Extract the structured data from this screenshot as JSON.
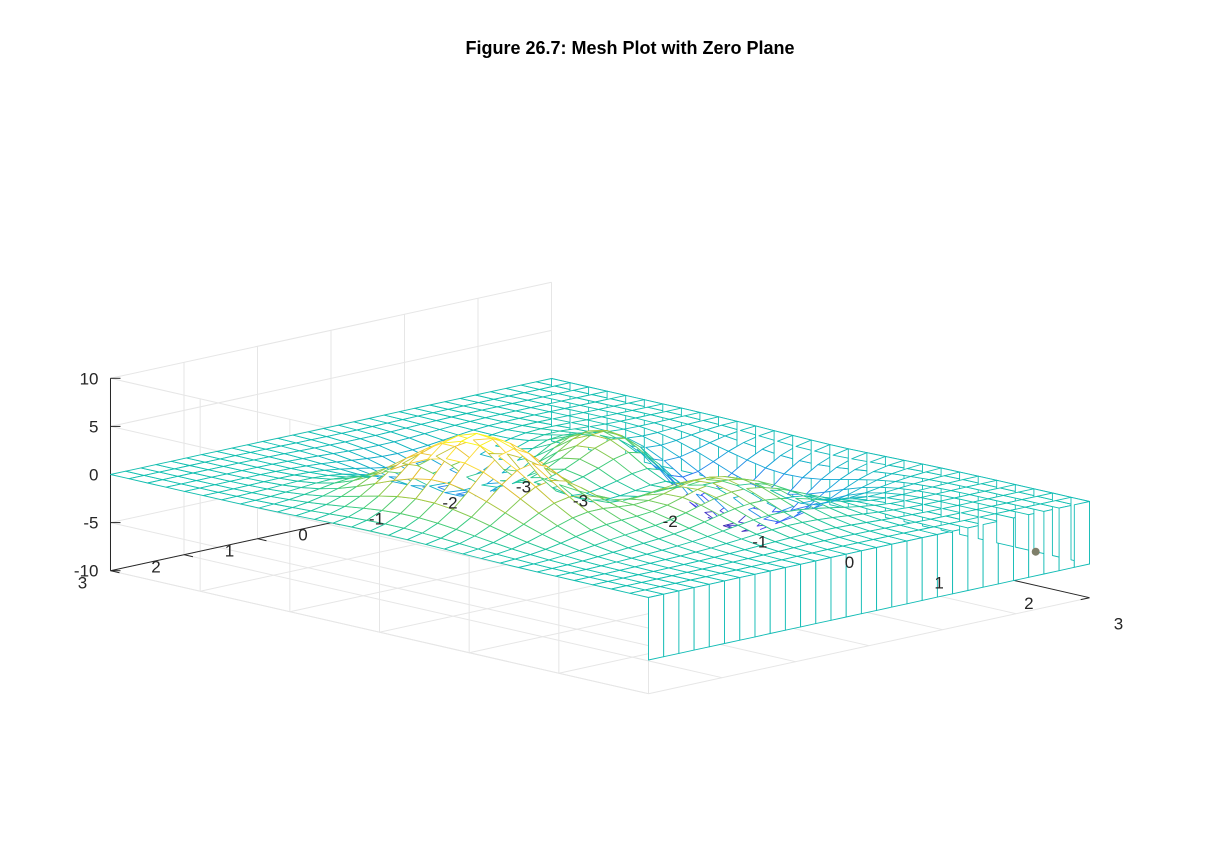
{
  "chart_data": {
    "type": "mesh",
    "title": "Figure 26.7: Mesh Plot with Zero Plane",
    "xlabel": "",
    "ylabel": "",
    "zlabel": "",
    "function": "peaks",
    "grid_size": 30,
    "xlim": [
      -3,
      3
    ],
    "ylim": [
      -3,
      3
    ],
    "zlim": [
      -10,
      10
    ],
    "curtain_level": -6.5,
    "x_ticks": [
      -3,
      -2,
      -1,
      0,
      1,
      2,
      3
    ],
    "y_ticks": [
      -3,
      -2,
      -1,
      0,
      1,
      2,
      3
    ],
    "z_ticks": [
      -10,
      -5,
      0,
      5,
      10
    ],
    "x_tick_labels": [
      "-3",
      "-2",
      "-1",
      "0",
      "1",
      "2",
      "3"
    ],
    "y_tick_labels": [
      "-3",
      "-2",
      "-1",
      "0",
      "1",
      "2",
      "3"
    ],
    "z_tick_labels": [
      "-10",
      "-5",
      "0",
      "5",
      "10"
    ],
    "grid": true,
    "colormap": "parula",
    "marker_point": {
      "x": 2.4,
      "y": -3,
      "z": -6.5
    }
  },
  "colors": {
    "axis": "#262626",
    "grid": "#e6e6e6",
    "marker": "#7f7f6a",
    "parula_stops": [
      "#3e26a8",
      "#4743f8",
      "#2c7cf3",
      "#17a5d9",
      "#11bfb0",
      "#3fcd7a",
      "#9ec942",
      "#e5bb2b",
      "#fcd836",
      "#f9fb0e"
    ]
  }
}
